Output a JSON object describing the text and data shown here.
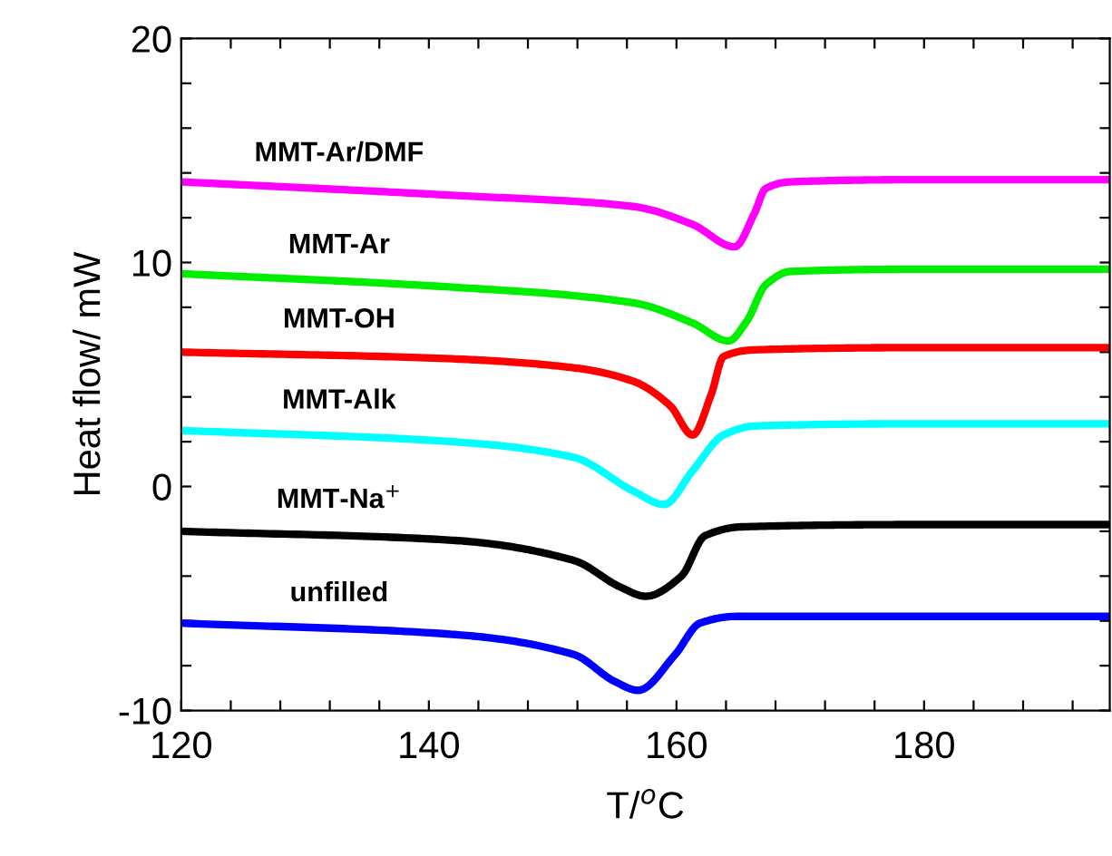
{
  "chart_data": {
    "type": "line",
    "xlabel": "T/$^{o}$C",
    "ylabel": "Heat flow/ mW",
    "xlim": [
      120,
      195
    ],
    "ylim": [
      -10,
      20
    ],
    "xticks": [
      120,
      {
        "value": 124,
        "label": null
      },
      {
        "value": 128,
        "label": null
      },
      {
        "value": 132,
        "label": null
      },
      {
        "value": 136,
        "label": null
      },
      140,
      {
        "value": 144,
        "label": null
      },
      {
        "value": 148,
        "label": null
      },
      {
        "value": 152,
        "label": null
      },
      {
        "value": 156,
        "label": null
      },
      160,
      {
        "value": 164,
        "label": null
      },
      {
        "value": 168,
        "label": null
      },
      {
        "value": 172,
        "label": null
      },
      {
        "value": 176,
        "label": null
      },
      180,
      {
        "value": 184,
        "label": null
      },
      {
        "value": 188,
        "label": null
      },
      {
        "value": 192,
        "label": null
      }
    ],
    "yticks": [
      -10,
      {
        "value": -8,
        "label": null
      },
      {
        "value": -6,
        "label": null
      },
      {
        "value": -4,
        "label": null
      },
      {
        "value": -2,
        "label": null
      },
      0,
      {
        "value": 2,
        "label": null
      },
      {
        "value": 4,
        "label": null
      },
      {
        "value": 6,
        "label": null
      },
      {
        "value": 8,
        "label": null
      },
      10,
      {
        "value": 12,
        "label": null
      },
      {
        "value": 14,
        "label": null
      },
      {
        "value": 16,
        "label": null
      },
      {
        "value": 18,
        "label": null
      },
      20
    ],
    "grid": false,
    "legend": false,
    "marker": "none",
    "line_style": "solid",
    "series": [
      {
        "name": "MMT-Ar/DMF",
        "color": "#ff00ff",
        "x": [
          120,
          141.9,
          156.5,
          161.3,
          164.7,
          166.3,
          167.2,
          169.2,
          180,
          195
        ],
        "values": [
          13.6,
          13.0,
          12.5,
          11.7,
          10.7,
          12.2,
          13.3,
          13.6,
          13.7,
          13.7
        ]
      },
      {
        "name": "MMT-Ar",
        "color": "#00ee00",
        "x": [
          120,
          141.9,
          156.5,
          161.3,
          164.2,
          165.7,
          167.2,
          169.2,
          180,
          195
        ],
        "values": [
          9.5,
          8.9,
          8.2,
          7.3,
          6.5,
          7.4,
          9.0,
          9.6,
          9.7,
          9.7
        ]
      },
      {
        "name": "MMT-OH",
        "color": "#ff0000",
        "x": [
          120,
          141.9,
          151.7,
          156.5,
          159.5,
          161.3,
          162.8,
          163.8,
          166.3,
          180,
          195
        ],
        "values": [
          6.0,
          5.7,
          5.3,
          4.7,
          3.6,
          2.3,
          4.1,
          5.8,
          6.1,
          6.2,
          6.2
        ]
      },
      {
        "name": "MMT-Alk",
        "color": "#00ffff",
        "x": [
          120,
          141.9,
          151.7,
          156.5,
          159.0,
          161.3,
          163.8,
          166.3,
          180,
          195
        ],
        "values": [
          2.5,
          2.0,
          1.3,
          -0.2,
          -0.8,
          0.7,
          2.3,
          2.7,
          2.8,
          2.8
        ]
      },
      {
        "name": "MMT-Na$^{+}$",
        "color": "#000000",
        "x": [
          120,
          141.9,
          151.7,
          155.5,
          157.5,
          160.4,
          162.3,
          165.3,
          180,
          195
        ],
        "values": [
          -2.0,
          -2.4,
          -3.3,
          -4.5,
          -4.9,
          -4.0,
          -2.2,
          -1.8,
          -1.7,
          -1.7
        ]
      },
      {
        "name": "unfilled",
        "color": "#0000ff",
        "x": [
          120,
          141.9,
          151.7,
          155.0,
          156.9,
          159.9,
          161.9,
          164.8,
          180,
          195
        ],
        "values": [
          -6.1,
          -6.6,
          -7.5,
          -8.7,
          -9.1,
          -7.5,
          -6.1,
          -5.8,
          -5.8,
          -5.8
        ]
      }
    ]
  }
}
